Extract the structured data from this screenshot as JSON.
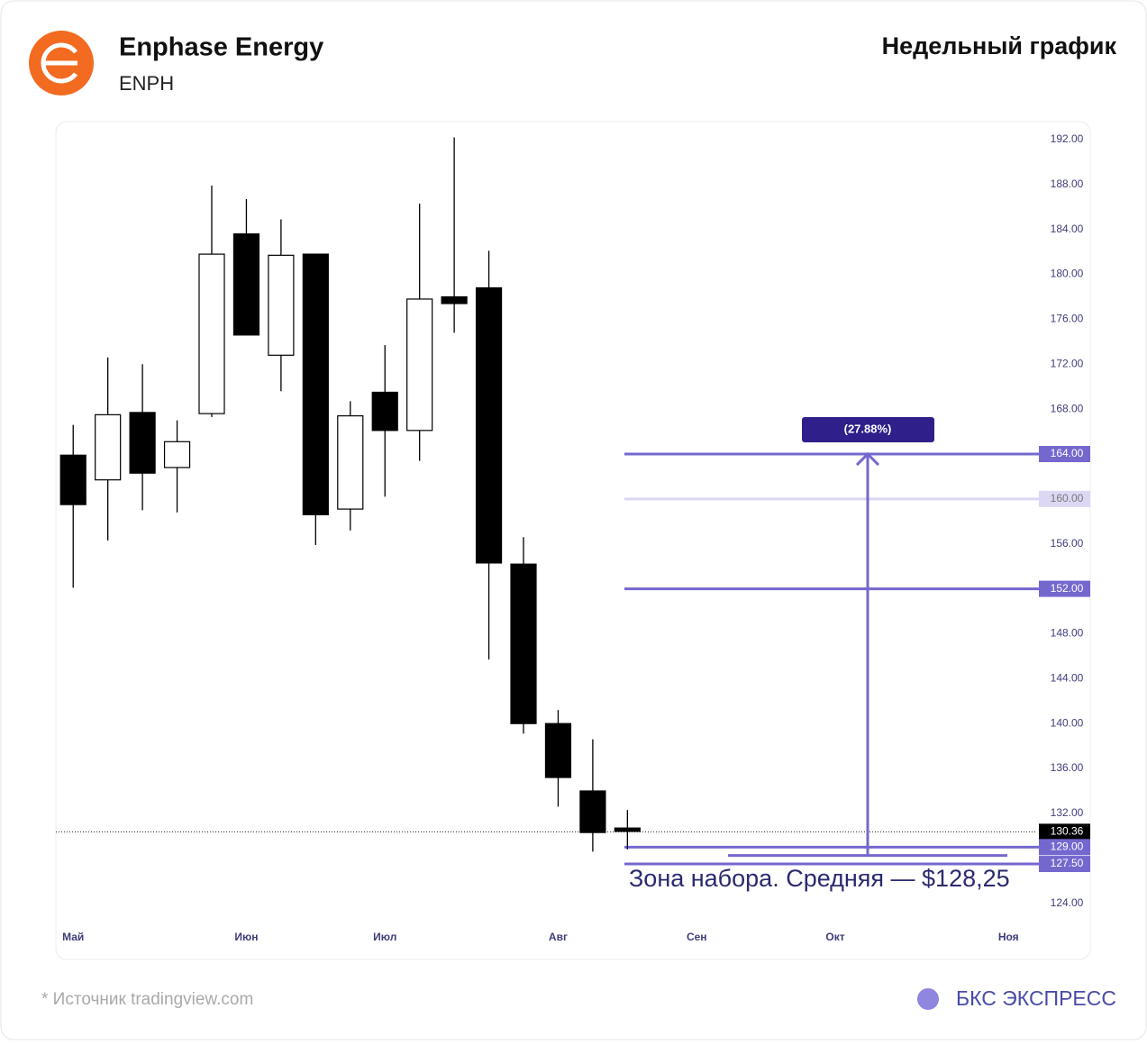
{
  "header": {
    "title": "Enphase Energy",
    "ticker": "ENPH",
    "subtitle": "Недельный график"
  },
  "footer": {
    "source": "* Источник tradingview.com",
    "brand": "БКС ЭКСПРЕСС"
  },
  "chart_data": {
    "type": "candlestick",
    "categories": [
      null,
      null,
      null,
      null,
      null,
      null,
      null,
      null,
      null,
      null,
      null,
      null,
      null,
      null,
      null,
      null,
      null
    ],
    "open": [
      163.9,
      161.7,
      167.7,
      162.8,
      167.6,
      183.6,
      172.8,
      181.8,
      159.1,
      169.5,
      166.1,
      178.0,
      178.8,
      154.2,
      140.0,
      134.0,
      130.7
    ],
    "high": [
      166.6,
      172.6,
      172.0,
      167.0,
      187.9,
      186.7,
      184.9,
      181.8,
      168.7,
      173.7,
      186.3,
      192.2,
      182.1,
      156.6,
      141.2,
      138.6,
      132.3
    ],
    "low": [
      152.1,
      156.3,
      159.0,
      158.8,
      167.3,
      174.6,
      169.6,
      155.9,
      157.2,
      160.2,
      163.4,
      174.8,
      145.7,
      139.1,
      132.6,
      128.6,
      128.8
    ],
    "close": [
      159.5,
      167.5,
      162.3,
      165.1,
      181.8,
      174.6,
      181.7,
      158.6,
      167.4,
      166.1,
      177.8,
      177.4,
      154.3,
      140.0,
      135.2,
      130.3,
      130.4
    ],
    "up_color": "#ffffff",
    "down_color": "#000000",
    "xlim": [
      -0.5,
      27.8
    ],
    "xticks": [
      {
        "value": 0,
        "label": "Май"
      },
      {
        "value": 5,
        "label": "Июн"
      },
      {
        "value": 9,
        "label": "Июл"
      },
      {
        "value": 14,
        "label": "Авг"
      },
      {
        "value": 18,
        "label": "Сен"
      },
      {
        "value": 22,
        "label": "Окт"
      },
      {
        "value": 27,
        "label": "Ноя"
      }
    ],
    "ylim": [
      119,
      193.6
    ],
    "yticks": [
      {
        "value": 124,
        "label": "124.00"
      },
      {
        "value": 132,
        "label": "132.00"
      },
      {
        "value": 136,
        "label": "136.00"
      },
      {
        "value": 140,
        "label": "140.00"
      },
      {
        "value": 144,
        "label": "144.00"
      },
      {
        "value": 148,
        "label": "148.00"
      },
      {
        "value": 156,
        "label": "156.00"
      },
      {
        "value": 168,
        "label": "168.00"
      },
      {
        "value": 172,
        "label": "172.00"
      },
      {
        "value": 176,
        "label": "176.00"
      },
      {
        "value": 180,
        "label": "180.00"
      },
      {
        "value": 184,
        "label": "184.00"
      },
      {
        "value": 188,
        "label": "188.00"
      },
      {
        "value": 192,
        "label": "192.00"
      }
    ],
    "last_price": {
      "value": 130.36,
      "label": "130.36"
    },
    "levels": [
      {
        "value": 164,
        "label": "164.00",
        "color": "#7468cf"
      },
      {
        "value": 160,
        "label": "160.00",
        "color": "#dcd8f4"
      },
      {
        "value": 152,
        "label": "152.00",
        "color": "#7468cf"
      },
      {
        "value": 129,
        "label": "129.00",
        "color": "#7468cf"
      },
      {
        "value": 127.5,
        "label": "127.50",
        "color": "#7468cf"
      }
    ],
    "average": 128.25,
    "measure": {
      "from": 128.25,
      "to": 164,
      "label": "(27.88%)"
    },
    "annotation": "Зона набора. Средняя — $128,25"
  }
}
